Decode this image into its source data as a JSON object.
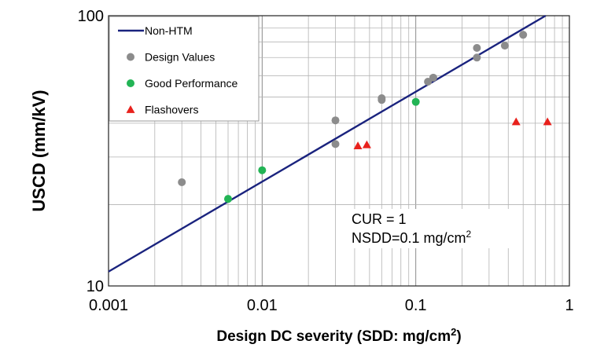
{
  "chart_data": {
    "type": "scatter",
    "x_scale": "log",
    "y_scale": "log",
    "xlim": [
      0.001,
      1
    ],
    "ylim": [
      10,
      100
    ],
    "xlabel": "Design DC severity (SDD: mg/cm²)",
    "ylabel": "USCD (mm/kV)",
    "x_ticks": [
      {
        "value": 0.001,
        "label": "0.001"
      },
      {
        "value": 0.01,
        "label": "0.01"
      },
      {
        "value": 0.1,
        "label": "0.1"
      },
      {
        "value": 1,
        "label": "1"
      }
    ],
    "y_ticks": [
      {
        "value": 10,
        "label": "10"
      },
      {
        "value": 100,
        "label": "100"
      }
    ],
    "grid": true,
    "legend_position": "top-left",
    "series": [
      {
        "name": "Non-HTM",
        "kind": "line",
        "color": "#1a237e",
        "points": [
          [
            0.001,
            11.3
          ],
          [
            0.7,
            100
          ]
        ]
      },
      {
        "name": "Design Values",
        "kind": "circle",
        "color": "#8c8c8c",
        "points": [
          [
            0.003,
            24.2
          ],
          [
            0.03,
            41.0
          ],
          [
            0.03,
            33.5
          ],
          [
            0.06,
            49.5
          ],
          [
            0.06,
            48.8
          ],
          [
            0.12,
            57.0
          ],
          [
            0.13,
            59.0
          ],
          [
            0.25,
            76.0
          ],
          [
            0.25,
            70.0
          ],
          [
            0.38,
            77.5
          ],
          [
            0.5,
            85.0
          ]
        ]
      },
      {
        "name": "Good Performance",
        "kind": "circle",
        "color": "#22b455",
        "points": [
          [
            0.006,
            21.0
          ],
          [
            0.01,
            26.8
          ],
          [
            0.1,
            48.0
          ]
        ]
      },
      {
        "name": "Flashovers",
        "kind": "triangle",
        "color": "#e8211c",
        "points": [
          [
            0.042,
            33.0
          ],
          [
            0.048,
            33.3
          ],
          [
            0.45,
            40.5
          ],
          [
            0.72,
            40.5
          ]
        ]
      }
    ],
    "annotation": {
      "line1": "CUR = 1",
      "line2_prefix": "NSDD=0.1 mg/cm",
      "line2_sup": "2"
    }
  }
}
